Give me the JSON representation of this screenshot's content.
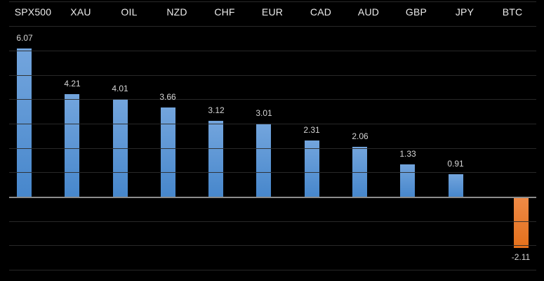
{
  "chart_data": {
    "type": "bar",
    "title": "",
    "xlabel": "",
    "ylabel": "",
    "categories": [
      "SPX500",
      "XAU",
      "OIL",
      "NZD",
      "CHF",
      "EUR",
      "CAD",
      "AUD",
      "GBP",
      "JPY",
      "BTC"
    ],
    "values": [
      6.07,
      4.21,
      4.01,
      3.66,
      3.12,
      3.01,
      2.31,
      2.06,
      1.33,
      0.91,
      -2.11
    ],
    "value_labels": [
      "6.07",
      "4.21",
      "4.01",
      "3.66",
      "3.12",
      "3.01",
      "2.31",
      "2.06",
      "1.33",
      "0.91",
      "-2.11"
    ],
    "ylim": [
      -3.4,
      8.1
    ],
    "gridlines_at": [
      8,
      7,
      6,
      5,
      4,
      3,
      2,
      1,
      -1,
      -2,
      -3
    ],
    "zero_line_value": 0,
    "legend_position": "none",
    "grid": "on",
    "colors": {
      "background": "#000000",
      "positive_bar_top": "#73a5dd",
      "positive_bar_bottom": "#4787cc",
      "negative_bar_top": "#ef8a46",
      "negative_bar_bottom": "#e4701b",
      "gridline": "#2b2b2b",
      "zero_line": "#8c8c8c",
      "category_label": "#ebebeb",
      "value_label": "#d6d6d6"
    }
  }
}
